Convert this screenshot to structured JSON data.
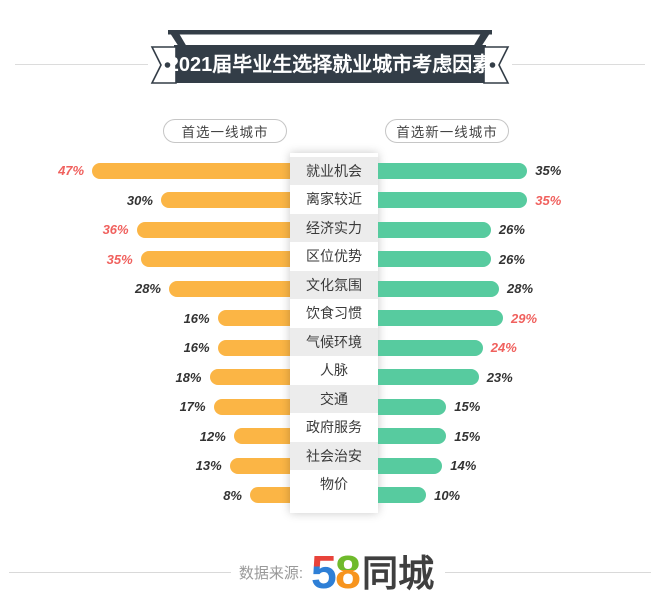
{
  "title": "2021届毕业生选择就业城市考虑因素",
  "legend": {
    "left": "首选一线城市",
    "right": "首选新一线城市"
  },
  "footer": {
    "source_label": "数据来源:",
    "logo_5": "5",
    "logo_8": "8",
    "logo_cn": "同城"
  },
  "colors": {
    "left_bar": "#FBB545",
    "right_bar": "#57CB9F",
    "highlight": "#F0615E",
    "value_text": "#333333",
    "banner": "#333D47",
    "center_cell": "#ECECEC",
    "logo_red": "#E8433A",
    "logo_blue": "#2E7FD6",
    "logo_green": "#6FBA2C",
    "logo_orange": "#F7941E"
  },
  "chart_data": {
    "type": "bar",
    "orientation": "horizontal-diverging",
    "unit": "%",
    "title": "2021届毕业生选择就业城市考虑因素",
    "categories": [
      "就业机会",
      "离家较近",
      "经济实力",
      "区位优势",
      "文化氛围",
      "饮食习惯",
      "气候环境",
      "人脉",
      "交通",
      "政府服务",
      "社会治安",
      "物价"
    ],
    "series": [
      {
        "name": "首选一线城市",
        "side": "left",
        "color": "#FBB545",
        "values": [
          47,
          30,
          36,
          35,
          28,
          16,
          16,
          18,
          17,
          12,
          13,
          8
        ]
      },
      {
        "name": "首选新一线城市",
        "side": "right",
        "color": "#57CB9F",
        "values": [
          35,
          35,
          26,
          26,
          28,
          29,
          24,
          23,
          15,
          15,
          14,
          10
        ]
      }
    ],
    "highlight_left": [
      true,
      false,
      true,
      true,
      false,
      false,
      false,
      false,
      false,
      false,
      false,
      false
    ],
    "highlight_right": [
      false,
      true,
      false,
      false,
      false,
      true,
      true,
      false,
      false,
      false,
      false,
      false
    ],
    "xlim": [
      0,
      50
    ],
    "grid": false,
    "legend_position": "top"
  }
}
